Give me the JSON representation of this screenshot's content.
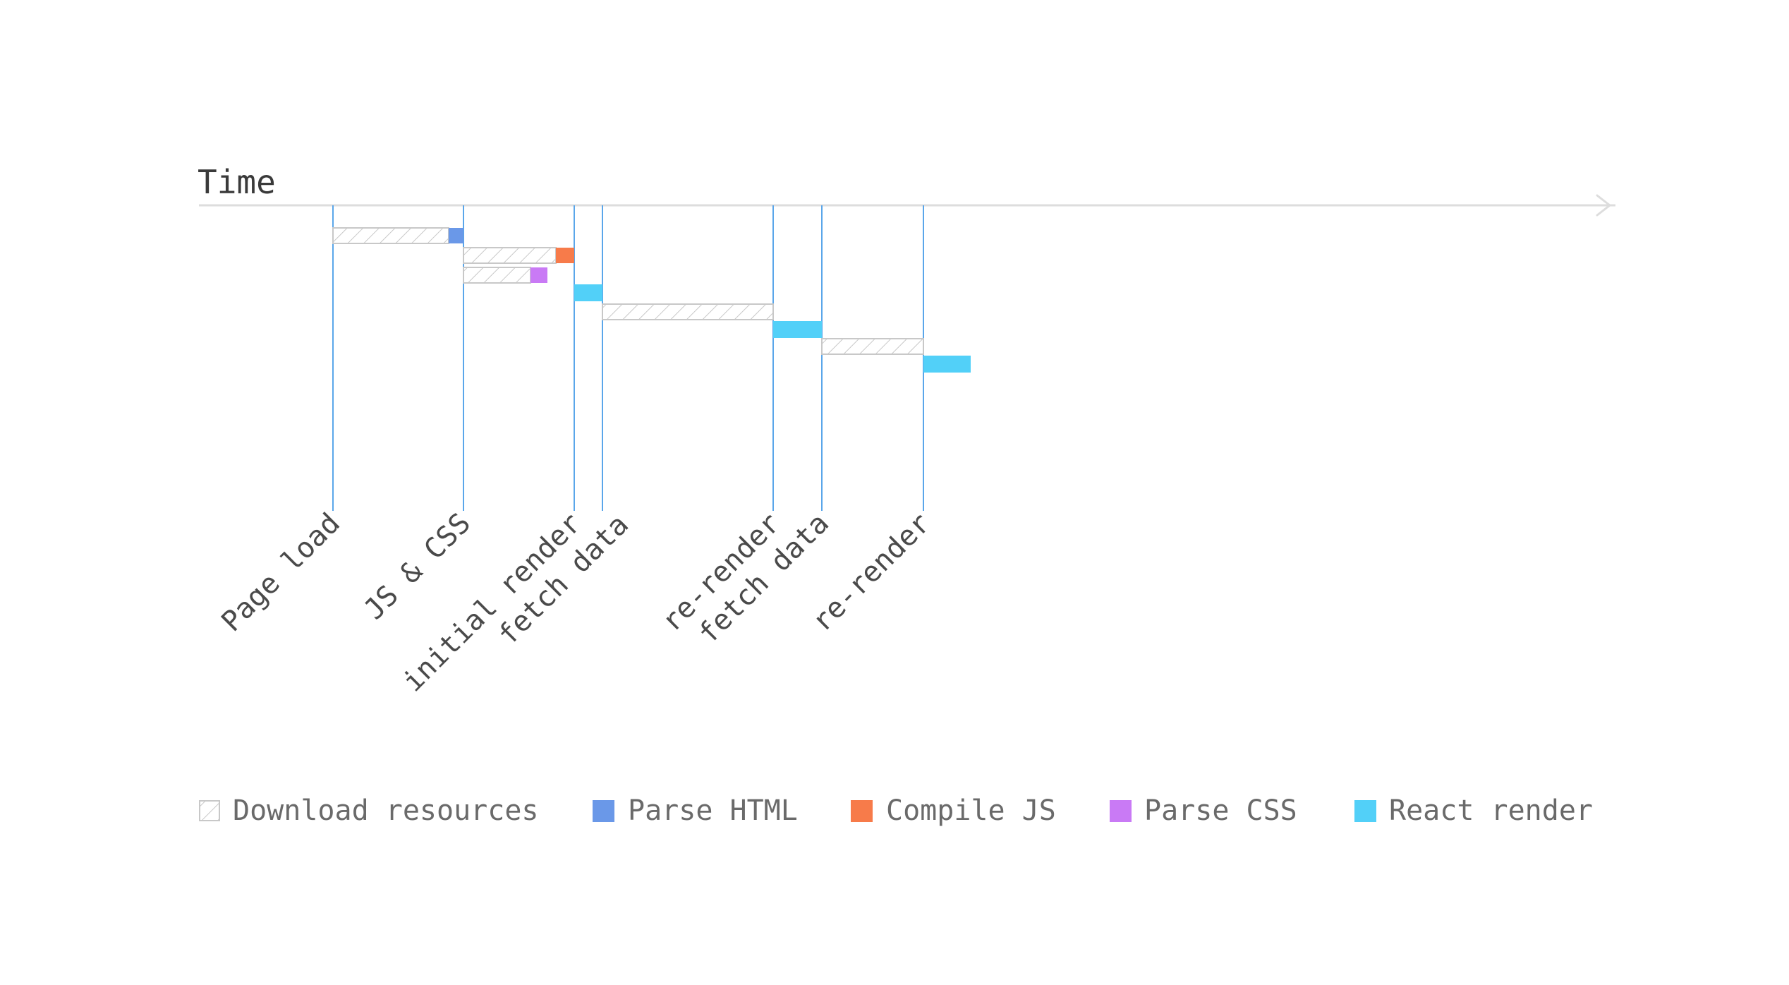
{
  "axis": {
    "title": "Time"
  },
  "colors": {
    "milestone_line": "#5aa6ea",
    "axis_line": "#dddddd",
    "download_stroke": "#c8c8c8",
    "parse_html": "#6a98e8",
    "compile_js": "#f77b4a",
    "parse_css": "#c97af5",
    "react_render": "#52d0f8"
  },
  "milestones": [
    {
      "id": "page-load",
      "label": "Page load"
    },
    {
      "id": "js-css",
      "label": "JS & CSS"
    },
    {
      "id": "initial-render",
      "label": "initial render"
    },
    {
      "id": "fetch-data-1",
      "label": "fetch data"
    },
    {
      "id": "re-render-1",
      "label": "re-render"
    },
    {
      "id": "fetch-data-2",
      "label": "fetch data"
    },
    {
      "id": "re-render-2",
      "label": "re-render"
    }
  ],
  "legend": [
    {
      "key": "download",
      "label": "Download resources",
      "icon": "hatched-square-icon"
    },
    {
      "key": "parse_html",
      "label": "Parse HTML",
      "icon": "square-icon"
    },
    {
      "key": "compile_js",
      "label": "Compile JS",
      "icon": "square-icon"
    },
    {
      "key": "parse_css",
      "label": "Parse CSS",
      "icon": "square-icon"
    },
    {
      "key": "react_render",
      "label": "React render",
      "icon": "square-icon"
    }
  ]
}
